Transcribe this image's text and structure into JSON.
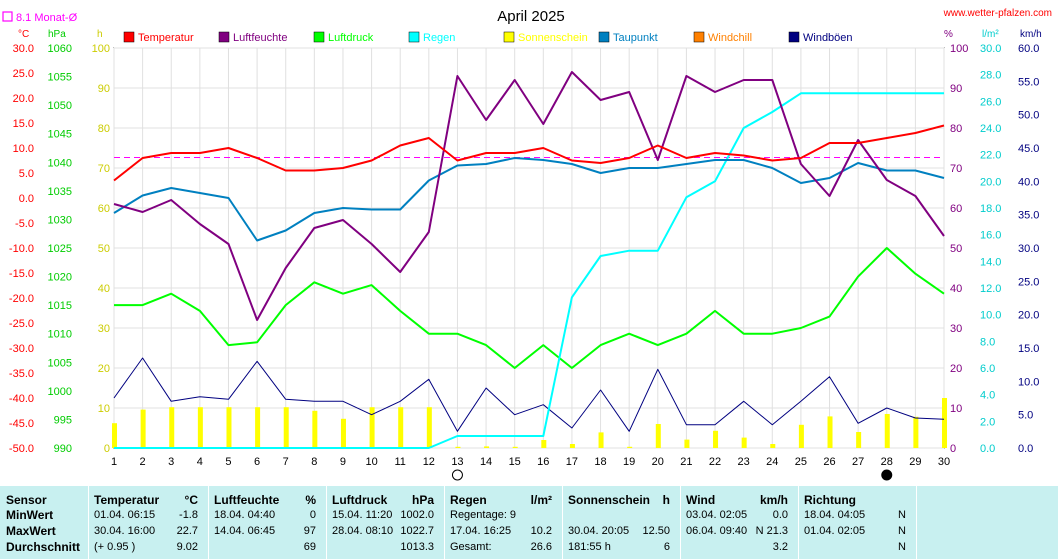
{
  "header": {
    "title": "April 2025",
    "website": "www.wetter-pfalzen.com",
    "monthly_avg_label": "8.1 Monat-Ø"
  },
  "axis_units": {
    "left1": "°C",
    "left2": "hPa",
    "left3": "h",
    "right1": "%",
    "right2": "l/m²",
    "right3": "km/h"
  },
  "legend": [
    {
      "label": "Temperatur",
      "color": "#ff0000"
    },
    {
      "label": "Luftfeuchte",
      "color": "#800080"
    },
    {
      "label": "Luftdruck",
      "color": "#00ff00"
    },
    {
      "label": "Regen",
      "color": "#00ffff"
    },
    {
      "label": "Sonnenschein",
      "color": "#ffff00"
    },
    {
      "label": "Taupunkt",
      "color": "#0080c0"
    },
    {
      "label": "Windchill",
      "color": "#ff8000"
    },
    {
      "label": "Windböen",
      "color": "#000080"
    }
  ],
  "chart_data": {
    "type": "line",
    "title": "April 2025",
    "x": [
      1,
      2,
      3,
      4,
      5,
      6,
      7,
      8,
      9,
      10,
      11,
      12,
      13,
      14,
      15,
      16,
      17,
      18,
      19,
      20,
      21,
      22,
      23,
      24,
      25,
      26,
      27,
      28,
      29,
      30
    ],
    "axes": {
      "temperature_c": {
        "range": [
          -50,
          30
        ],
        "ticks": [
          "30.0",
          "25.0",
          "20.0",
          "15.0",
          "10.0",
          "5.0",
          "0.0",
          "-5.0",
          "-10.0",
          "-15.0",
          "-20.0",
          "-25.0",
          "-30.0",
          "-35.0",
          "-40.0",
          "-45.0",
          "-50.0"
        ],
        "color": "#ff0000"
      },
      "pressure_hpa": {
        "range": [
          990,
          1060
        ],
        "ticks": [
          "1060",
          "1055",
          "1050",
          "1045",
          "1040",
          "1035",
          "1030",
          "1025",
          "1020",
          "1015",
          "1010",
          "1005",
          "1000",
          "995",
          "990"
        ],
        "color": "#00cc00"
      },
      "sunshine_h": {
        "range": [
          0,
          100
        ],
        "ticks": [
          "100",
          "90",
          "80",
          "70",
          "60",
          "50",
          "40",
          "30",
          "20",
          "10",
          "0"
        ],
        "color": "#cccc00"
      },
      "humidity_pct": {
        "range": [
          0,
          100
        ],
        "ticks": [
          "100",
          "90",
          "80",
          "70",
          "60",
          "50",
          "40",
          "30",
          "20",
          "10",
          "0"
        ],
        "color": "#800080"
      },
      "rain_lm2": {
        "range": [
          0,
          30
        ],
        "ticks": [
          "30.0",
          "28.0",
          "26.0",
          "24.0",
          "22.0",
          "20.0",
          "18.0",
          "16.0",
          "14.0",
          "12.0",
          "10.0",
          "8.0",
          "6.0",
          "4.0",
          "2.0",
          "0.0"
        ],
        "color": "#00cccc"
      },
      "wind_kmh": {
        "range": [
          0,
          60
        ],
        "ticks": [
          "60.0",
          "55.0",
          "50.0",
          "45.0",
          "40.0",
          "35.0",
          "30.0",
          "25.0",
          "20.0",
          "15.0",
          "10.0",
          "5.0",
          "0.0"
        ],
        "color": "#000080"
      }
    },
    "monthly_avg_temperature": 8.1,
    "series": [
      {
        "name": "Temperatur",
        "axis": "temperature_c",
        "color": "#ff0000",
        "values": [
          3.5,
          8.0,
          9.0,
          9.0,
          10.0,
          8.0,
          5.5,
          5.5,
          6.0,
          7.5,
          10.5,
          12.0,
          7.5,
          9.0,
          9.0,
          10.0,
          7.5,
          7.0,
          8.0,
          10.5,
          8.0,
          9.0,
          8.5,
          7.5,
          8.0,
          11.0,
          11.0,
          12.0,
          13.0,
          14.5
        ]
      },
      {
        "name": "Luftfeuchte",
        "axis": "humidity_pct",
        "color": "#800080",
        "values": [
          61,
          59,
          62,
          56,
          51,
          32,
          45,
          55,
          57,
          51,
          44,
          54,
          93,
          82,
          92,
          81,
          94,
          87,
          89,
          72,
          93,
          89,
          92,
          92,
          71,
          63,
          77,
          67,
          63,
          53
        ]
      },
      {
        "name": "Luftdruck",
        "axis": "pressure_hpa",
        "color": "#00ff00",
        "values": [
          1015,
          1015,
          1017,
          1014,
          1008,
          1008.5,
          1015,
          1019,
          1017,
          1018.5,
          1014,
          1010,
          1010,
          1008,
          1004,
          1008,
          1004,
          1008,
          1010,
          1008,
          1010,
          1014,
          1010,
          1010,
          1011,
          1013,
          1020,
          1025,
          1020.5,
          1017
        ]
      },
      {
        "name": "Regen",
        "axis": "rain_lm2",
        "color": "#00ffff",
        "values": [
          0,
          0,
          0,
          0,
          0,
          0,
          0,
          0,
          0,
          0,
          0,
          0,
          0.9,
          0.9,
          0.9,
          0.9,
          11.3,
          14.4,
          14.8,
          14.8,
          18.8,
          20.0,
          24.0,
          25.2,
          26.6,
          26.6,
          26.6,
          26.6,
          26.6,
          26.6
        ]
      },
      {
        "name": "Taupunkt",
        "axis": "temperature_c",
        "color": "#0080c0",
        "values": [
          -3.0,
          0.5,
          2.0,
          1.0,
          0.0,
          -8.5,
          -6.5,
          -3.0,
          -2.0,
          -2.3,
          -2.3,
          3.5,
          6.5,
          6.8,
          8.0,
          7.6,
          6.8,
          5.0,
          6.0,
          6.0,
          6.8,
          7.6,
          7.6,
          6.0,
          3.0,
          4.0,
          7.0,
          5.5,
          5.5,
          4.0
        ]
      },
      {
        "name": "Windböen",
        "axis": "wind_kmh",
        "color": "#000080",
        "values": [
          7.5,
          13.5,
          7.0,
          7.7,
          7.3,
          13.0,
          7.3,
          7.0,
          7.0,
          5.0,
          7.0,
          10.3,
          2.5,
          9.0,
          5.0,
          6.5,
          3.0,
          8.7,
          2.5,
          11.8,
          3.5,
          3.5,
          7.0,
          3.5,
          7.0,
          10.7,
          3.7,
          6.0,
          4.5,
          4.3
        ]
      }
    ],
    "bars": {
      "name": "Sonnenschein",
      "axis": "sunshine_h",
      "color": "#ffff00",
      "values": [
        6.2,
        9.6,
        10.2,
        10.2,
        10.2,
        10.2,
        10.2,
        9.3,
        7.3,
        10.2,
        10.2,
        10.2,
        0.3,
        0.4,
        0.3,
        2.0,
        1.0,
        3.9,
        0.3,
        6.0,
        2.1,
        4.3,
        2.6,
        1.0,
        5.8,
        7.9,
        4.0,
        8.5,
        7.8,
        12.5
      ]
    },
    "moon_phases": [
      {
        "day": 13,
        "phase": "full"
      },
      {
        "day": 28,
        "phase": "new"
      }
    ]
  },
  "table": {
    "row_labels": [
      "Sensor",
      "MinWert",
      "MaxWert",
      "Durchschnitt"
    ],
    "columns": [
      {
        "title": "Temperatur",
        "unit": "°C",
        "rows": [
          [
            "01.04.  06:15",
            "-1.8"
          ],
          [
            "30.04.  16:00",
            "22.7"
          ],
          [
            "(+ 0.95 )",
            "9.02"
          ]
        ]
      },
      {
        "title": "Luftfeuchte",
        "unit": "%",
        "rows": [
          [
            "18.04.  04:40",
            "0"
          ],
          [
            "14.04.  06:45",
            "97"
          ],
          [
            "",
            "69"
          ]
        ]
      },
      {
        "title": "Luftdruck",
        "unit": "hPa",
        "rows": [
          [
            "15.04.  11:20",
            "1002.0"
          ],
          [
            "28.04.  08:10",
            "1022.7"
          ],
          [
            "",
            "1013.3"
          ]
        ]
      },
      {
        "title": "Regen",
        "unit": "l/m²",
        "rows": [
          [
            "Regentage: 9",
            ""
          ],
          [
            "17.04.  16:25",
            "10.2"
          ],
          [
            "Gesamt:",
            "26.6"
          ]
        ]
      },
      {
        "title": "Sonnenschein",
        "unit": "h",
        "rows": [
          [
            "",
            ""
          ],
          [
            "30.04.  20:05",
            "12.50"
          ],
          [
            "181:55 h",
            "6"
          ]
        ]
      },
      {
        "title": "Wind",
        "unit": "km/h",
        "rows": [
          [
            "03.04.  02:05",
            "0.0"
          ],
          [
            "06.04.  09:40",
            "N 21.3"
          ],
          [
            "",
            "3.2"
          ]
        ]
      },
      {
        "title": "Richtung",
        "unit": "",
        "rows": [
          [
            "18.04.  04:05",
            "N"
          ],
          [
            "01.04.  02:05",
            "N"
          ],
          [
            "",
            "N"
          ]
        ]
      }
    ]
  }
}
